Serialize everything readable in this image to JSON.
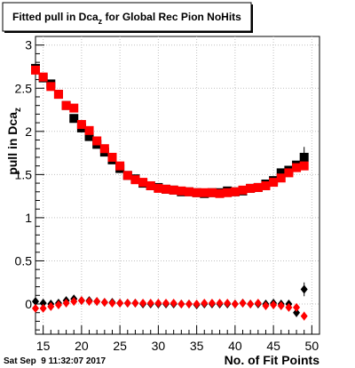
{
  "chart_data": {
    "type": "scatter",
    "title": "Fitted pull in Dca",
    "title_sub": "z",
    "title_rest": " for Global Rec Pion NoHits",
    "ylabel": "pull in Dca",
    "ylabel_sub": "z",
    "xlabel": "No. of Fit Points",
    "date_stamp": "Sat Sep  9 11:32:07 2017",
    "xlim": [
      14,
      51
    ],
    "ylim": [
      -0.35,
      3.1
    ],
    "xticks": [
      15,
      20,
      25,
      30,
      35,
      40,
      45,
      50
    ],
    "yticks": [
      0,
      0.5,
      1,
      1.5,
      2,
      2.5,
      3
    ],
    "ytick_labels": [
      "0",
      "0.5",
      "1",
      "1.5",
      "2",
      "2.5",
      "3"
    ],
    "grid": true,
    "colors": {
      "black_series": "#000000",
      "red_series": "#ff0000",
      "grid": "#c0c0c0"
    },
    "series": [
      {
        "marker": "square",
        "color": "#000000",
        "x": [
          14,
          15,
          16,
          17,
          18,
          19,
          20,
          21,
          22,
          23,
          24,
          25,
          26,
          27,
          28,
          29,
          30,
          31,
          32,
          33,
          34,
          35,
          36,
          37,
          38,
          39,
          40,
          41,
          42,
          43,
          44,
          45,
          46,
          47,
          48,
          49
        ],
        "y": [
          2.73,
          2.62,
          2.55,
          2.43,
          2.3,
          2.15,
          2.04,
          1.94,
          1.85,
          1.76,
          1.67,
          1.57,
          1.49,
          1.45,
          1.4,
          1.37,
          1.35,
          1.33,
          1.32,
          1.3,
          1.3,
          1.29,
          1.28,
          1.29,
          1.29,
          1.31,
          1.3,
          1.31,
          1.34,
          1.35,
          1.39,
          1.43,
          1.52,
          1.55,
          1.61,
          1.7
        ],
        "yerr": [
          0.04,
          0.03,
          0.03,
          0.02,
          0.02,
          0.02,
          0.02,
          0.02,
          0.01,
          0.01,
          0.01,
          0.01,
          0.01,
          0.01,
          0.01,
          0.01,
          0.01,
          0.01,
          0.01,
          0.01,
          0.01,
          0.01,
          0.01,
          0.01,
          0.01,
          0.01,
          0.01,
          0.01,
          0.01,
          0.01,
          0.01,
          0.01,
          0.02,
          0.02,
          0.03,
          0.12
        ]
      },
      {
        "marker": "square",
        "color": "#ff0000",
        "x": [
          14,
          15,
          16,
          17,
          18,
          19,
          20,
          21,
          22,
          23,
          24,
          25,
          26,
          27,
          28,
          29,
          30,
          31,
          32,
          33,
          34,
          35,
          36,
          37,
          38,
          39,
          40,
          41,
          42,
          43,
          44,
          45,
          46,
          47,
          48,
          49
        ],
        "y": [
          2.71,
          2.63,
          2.52,
          2.43,
          2.3,
          2.27,
          2.08,
          2.01,
          1.89,
          1.8,
          1.7,
          1.6,
          1.49,
          1.44,
          1.41,
          1.37,
          1.34,
          1.33,
          1.32,
          1.31,
          1.3,
          1.29,
          1.29,
          1.29,
          1.28,
          1.29,
          1.3,
          1.32,
          1.34,
          1.35,
          1.37,
          1.41,
          1.46,
          1.52,
          1.58,
          1.6
        ],
        "yerr": [
          0.04,
          0.03,
          0.03,
          0.02,
          0.02,
          0.02,
          0.02,
          0.02,
          0.01,
          0.01,
          0.01,
          0.01,
          0.01,
          0.01,
          0.01,
          0.01,
          0.01,
          0.01,
          0.01,
          0.01,
          0.01,
          0.01,
          0.01,
          0.01,
          0.01,
          0.01,
          0.01,
          0.01,
          0.01,
          0.01,
          0.01,
          0.01,
          0.02,
          0.02,
          0.03,
          0.05
        ]
      },
      {
        "marker": "diamond",
        "color": "#000000",
        "x": [
          14,
          15,
          16,
          17,
          18,
          19,
          20,
          21,
          22,
          23,
          24,
          25,
          26,
          27,
          28,
          29,
          30,
          31,
          32,
          33,
          34,
          35,
          36,
          37,
          38,
          39,
          40,
          41,
          42,
          43,
          44,
          45,
          46,
          47,
          48,
          49
        ],
        "y": [
          0.03,
          0.01,
          0.0,
          0.01,
          0.04,
          0.06,
          0.04,
          0.04,
          0.03,
          0.02,
          0.02,
          0.01,
          0.01,
          0.01,
          0.0,
          0.0,
          0.0,
          0.0,
          0.0,
          0.0,
          0.0,
          -0.01,
          0.0,
          0.0,
          0.0,
          0.0,
          0.0,
          0.01,
          0.0,
          0.0,
          0.0,
          0.01,
          0.0,
          0.0,
          -0.1,
          0.17
        ],
        "yerr": [
          0.03,
          0.02,
          0.02,
          0.02,
          0.02,
          0.02,
          0.02,
          0.02,
          0.01,
          0.01,
          0.01,
          0.01,
          0.01,
          0.01,
          0.01,
          0.01,
          0.01,
          0.01,
          0.01,
          0.01,
          0.01,
          0.01,
          0.01,
          0.01,
          0.01,
          0.01,
          0.01,
          0.01,
          0.01,
          0.01,
          0.01,
          0.01,
          0.02,
          0.02,
          0.05,
          0.08
        ]
      },
      {
        "marker": "diamond",
        "color": "#ff0000",
        "x": [
          14,
          15,
          16,
          17,
          18,
          19,
          20,
          21,
          22,
          23,
          24,
          25,
          26,
          27,
          28,
          29,
          30,
          31,
          32,
          33,
          34,
          35,
          36,
          37,
          38,
          39,
          40,
          41,
          42,
          43,
          44,
          45,
          46,
          47,
          48,
          49
        ],
        "y": [
          -0.05,
          -0.05,
          -0.03,
          -0.01,
          0.01,
          0.03,
          0.04,
          0.03,
          0.03,
          0.02,
          0.01,
          0.01,
          0.01,
          0.01,
          0.01,
          0.01,
          0.01,
          0.01,
          0.01,
          0.0,
          0.0,
          0.0,
          0.01,
          0.01,
          0.01,
          0.01,
          0.0,
          0.01,
          0.0,
          0.01,
          -0.02,
          -0.01,
          -0.02,
          -0.04,
          -0.04,
          -0.14
        ],
        "yerr": [
          0.03,
          0.02,
          0.02,
          0.02,
          0.02,
          0.02,
          0.02,
          0.02,
          0.01,
          0.01,
          0.01,
          0.01,
          0.01,
          0.01,
          0.01,
          0.01,
          0.01,
          0.01,
          0.01,
          0.01,
          0.01,
          0.01,
          0.01,
          0.01,
          0.01,
          0.01,
          0.01,
          0.01,
          0.01,
          0.01,
          0.01,
          0.01,
          0.02,
          0.02,
          0.03,
          0.05
        ]
      }
    ]
  }
}
